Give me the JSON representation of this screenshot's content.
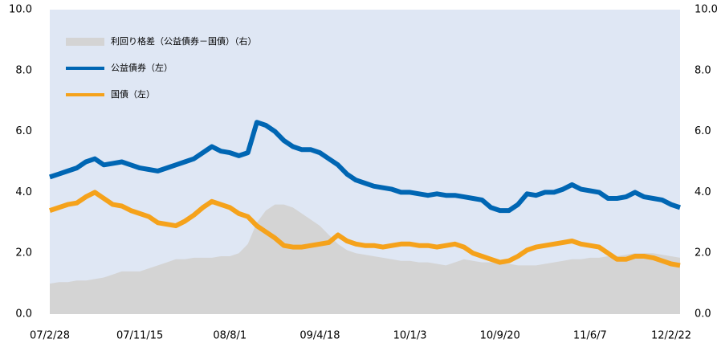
{
  "chart_data": {
    "type": "line",
    "categories": [
      "07/2/28",
      null,
      null,
      null,
      null,
      null,
      null,
      null,
      null,
      null,
      "07/11/15",
      null,
      null,
      null,
      null,
      null,
      null,
      null,
      null,
      null,
      "08/8/1",
      null,
      null,
      null,
      null,
      null,
      null,
      null,
      null,
      null,
      "09/4/18",
      null,
      null,
      null,
      null,
      null,
      null,
      null,
      null,
      null,
      "10/1/3",
      null,
      null,
      null,
      null,
      null,
      null,
      null,
      null,
      null,
      "10/9/20",
      null,
      null,
      null,
      null,
      null,
      null,
      null,
      null,
      null,
      "11/6/7",
      null,
      null,
      null,
      null,
      null,
      null,
      null,
      null,
      null,
      "12/2/22"
    ],
    "series": [
      {
        "name": "利回り格差（公益債券－国債）（右）",
        "color": "#d4d4d4",
        "axis": "y2",
        "kind": "area",
        "values": [
          1.0,
          1.05,
          1.05,
          1.1,
          1.1,
          1.15,
          1.2,
          1.3,
          1.4,
          1.4,
          1.4,
          1.5,
          1.6,
          1.7,
          1.8,
          1.8,
          1.85,
          1.85,
          1.85,
          1.9,
          1.9,
          2.0,
          2.3,
          3.0,
          3.4,
          3.6,
          3.6,
          3.5,
          3.3,
          3.1,
          2.9,
          2.6,
          2.3,
          2.1,
          2.0,
          1.95,
          1.9,
          1.85,
          1.8,
          1.75,
          1.75,
          1.7,
          1.7,
          1.65,
          1.6,
          1.7,
          1.8,
          1.75,
          1.7,
          1.7,
          1.65,
          1.65,
          1.6,
          1.6,
          1.6,
          1.65,
          1.7,
          1.75,
          1.8,
          1.8,
          1.85,
          1.85,
          1.9,
          1.9,
          1.95,
          2.0,
          2.0,
          2.0,
          1.95,
          1.9,
          1.85
        ]
      },
      {
        "name": "公益債券（左）",
        "color": "#0066b3",
        "values": [
          4.5,
          4.6,
          4.7,
          4.8,
          5.0,
          5.1,
          4.9,
          4.95,
          5.0,
          4.9,
          4.8,
          4.75,
          4.7,
          4.8,
          4.9,
          5.0,
          5.1,
          5.3,
          5.5,
          5.35,
          5.3,
          5.2,
          5.3,
          6.3,
          6.2,
          6.0,
          5.7,
          5.5,
          5.4,
          5.4,
          5.3,
          5.1,
          4.9,
          4.6,
          4.4,
          4.3,
          4.2,
          4.15,
          4.1,
          4.0,
          4.0,
          3.95,
          3.9,
          3.95,
          3.9,
          3.9,
          3.85,
          3.8,
          3.75,
          3.5,
          3.4,
          3.4,
          3.6,
          3.95,
          3.9,
          4.0,
          4.0,
          4.1,
          4.25,
          4.1,
          4.05,
          4.0,
          3.8,
          3.8,
          3.85,
          4.0,
          3.85,
          3.8,
          3.75,
          3.6,
          3.5
        ]
      },
      {
        "name": "国債（左）",
        "color": "#f5a21b",
        "values": [
          3.4,
          3.5,
          3.6,
          3.65,
          3.85,
          4.0,
          3.8,
          3.6,
          3.55,
          3.4,
          3.3,
          3.2,
          3.0,
          2.95,
          2.9,
          3.05,
          3.25,
          3.5,
          3.7,
          3.6,
          3.5,
          3.3,
          3.2,
          2.9,
          2.7,
          2.5,
          2.25,
          2.2,
          2.2,
          2.25,
          2.3,
          2.35,
          2.6,
          2.4,
          2.3,
          2.25,
          2.25,
          2.2,
          2.25,
          2.3,
          2.3,
          2.25,
          2.25,
          2.2,
          2.25,
          2.3,
          2.2,
          2.0,
          1.9,
          1.8,
          1.7,
          1.75,
          1.9,
          2.1,
          2.2,
          2.25,
          2.3,
          2.35,
          2.4,
          2.3,
          2.25,
          2.2,
          2.0,
          1.8,
          1.8,
          1.9,
          1.9,
          1.85,
          1.75,
          1.65,
          1.6
        ]
      }
    ],
    "ylim": [
      0,
      10
    ],
    "yticks": [
      {
        "value": 0,
        "label": "0.0"
      },
      {
        "value": 2,
        "label": "2.0"
      },
      {
        "value": 4,
        "label": "4.0"
      },
      {
        "value": 6,
        "label": "6.0"
      },
      {
        "value": 8,
        "label": "8.0"
      },
      {
        "value": 10,
        "label": "10.0"
      }
    ],
    "y2lim": [
      0,
      10
    ],
    "y2ticks": [
      {
        "value": 0,
        "label": "0.0"
      },
      {
        "value": 2,
        "label": "2.0"
      },
      {
        "value": 4,
        "label": "4.0"
      },
      {
        "value": 6,
        "label": "6.0"
      },
      {
        "value": 8,
        "label": "8.0"
      },
      {
        "value": 10,
        "label": "10.0"
      }
    ],
    "grid": false,
    "legend": "upper left"
  }
}
